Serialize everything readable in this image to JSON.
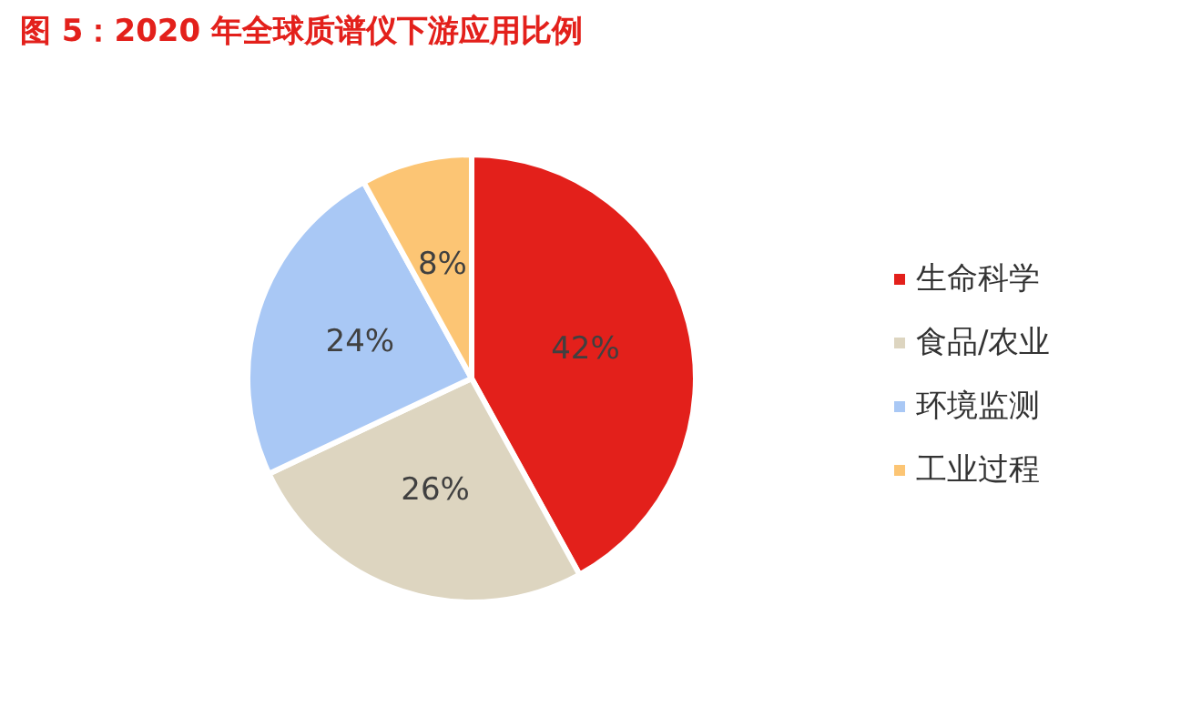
{
  "chart_data": {
    "type": "pie",
    "title": "图 5：2020 年全球质谱仪下游应用比例",
    "categories": [
      "生命科学",
      "食品/农业",
      "环境监测",
      "工业过程"
    ],
    "values": [
      42,
      26,
      24,
      8
    ],
    "colors": [
      "#e3201b",
      "#ddd5c0",
      "#a9c8f5",
      "#fcc574"
    ],
    "value_labels": [
      "42%",
      "26%",
      "24%",
      "8%"
    ],
    "legend": "right"
  }
}
